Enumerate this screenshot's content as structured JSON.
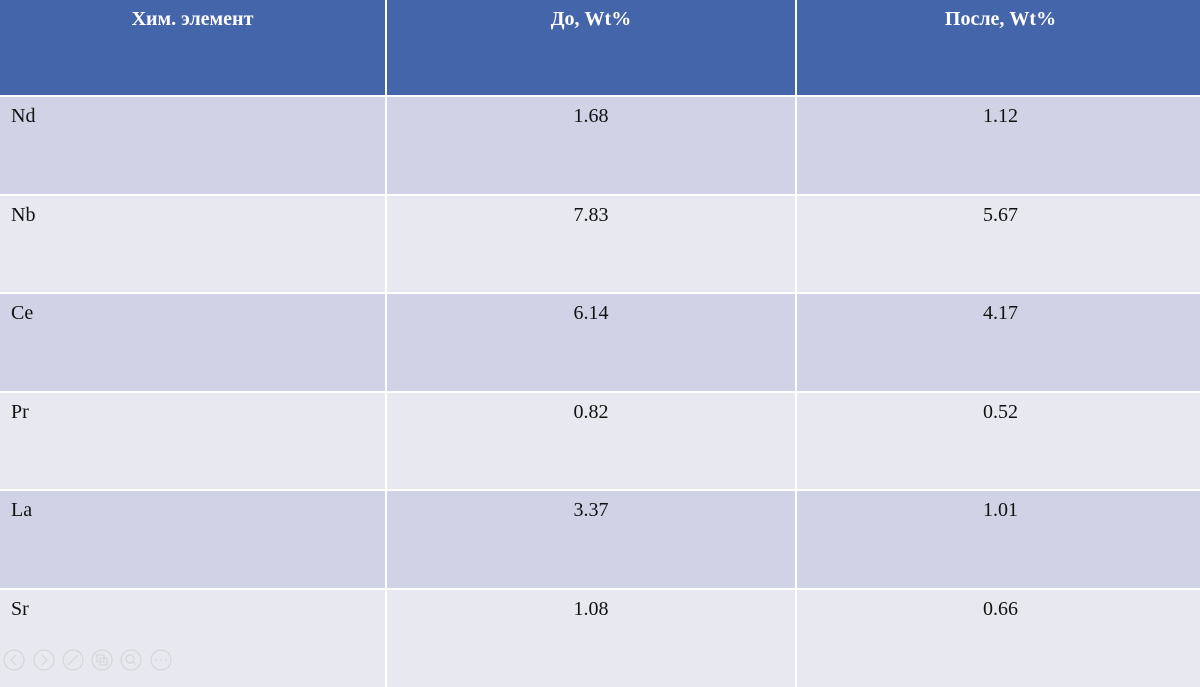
{
  "table": {
    "header": [
      "Хим. элемент",
      "До, Wt%",
      "После, Wt%"
    ],
    "rows": [
      [
        "Nd",
        "1.68",
        "1.12"
      ],
      [
        "Nb",
        "7.83",
        "5.67"
      ],
      [
        "Ce",
        "6.14",
        "4.17"
      ],
      [
        "Pr",
        "0.82",
        "0.52"
      ],
      [
        "La",
        "3.37",
        "1.01"
      ],
      [
        "Sr",
        "1.08",
        "0.66"
      ]
    ]
  }
}
